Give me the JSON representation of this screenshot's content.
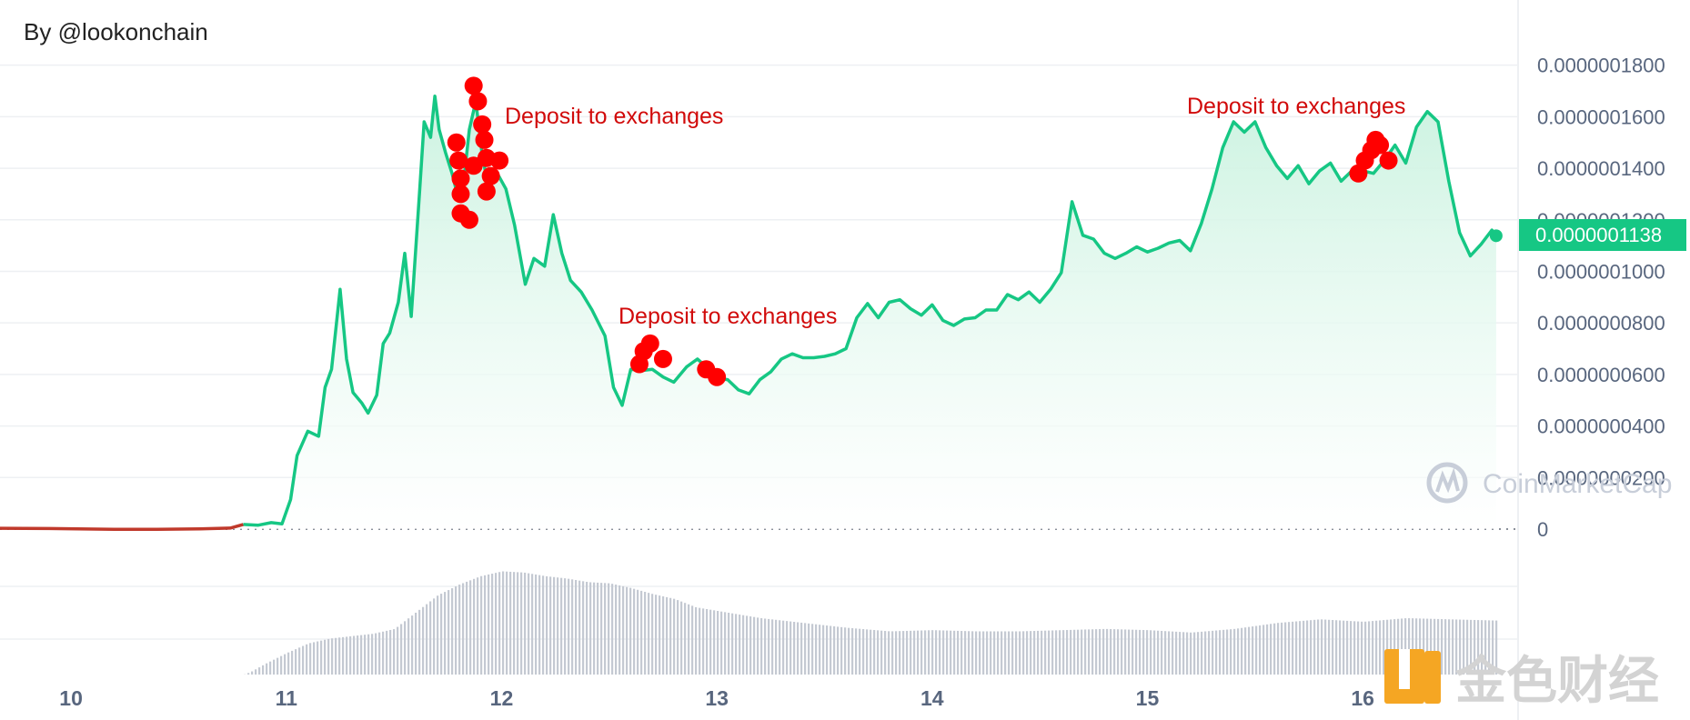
{
  "header": {
    "credit": "By @lookonchain"
  },
  "colors": {
    "line": "#16c784",
    "line_pre_launch": "#c0392b",
    "area_top": "#c9f2df",
    "marker": "#ff0000",
    "annotation": "#d10a0a",
    "price_badge": "#16c784",
    "volume": "#c4c9d2",
    "axis_text": "#58667e"
  },
  "price_badge": {
    "label": "0.0000001138"
  },
  "watermarks": {
    "coinmarketcap": "CoinMarketCap",
    "jinse": "金色财经"
  },
  "chart_data": {
    "type": "line",
    "title": "",
    "xlabel": "",
    "ylabel": "",
    "x_tick_labels": [
      "10",
      "11",
      "12",
      "13",
      "14",
      "15",
      "16"
    ],
    "y_tick_labels": [
      "0",
      "0.0000000200",
      "0.0000000400",
      "0.0000000600",
      "0.0000000800",
      "0.0000001000",
      "0.0000001200",
      "0.0000001400",
      "0.0000001600",
      "0.0000001800"
    ],
    "ylim": [
      0,
      1.82e-07
    ],
    "xlim": [
      9.67,
      16.65
    ],
    "grid": true,
    "series": [
      {
        "x": [
          9.67,
          9.9,
          10.2,
          10.4,
          10.6,
          10.74,
          10.8,
          10.87,
          10.93,
          10.98,
          11.02,
          11.05,
          11.1,
          11.15,
          11.18,
          11.21,
          11.25,
          11.28,
          11.31,
          11.35,
          11.38,
          11.42,
          11.45,
          11.48,
          11.52,
          11.55,
          11.58,
          11.62,
          11.64,
          11.67,
          11.69,
          11.71,
          11.74,
          11.77,
          11.8,
          11.82,
          11.85,
          11.88,
          11.91,
          11.94,
          11.98,
          12.02,
          12.06,
          12.11,
          12.15,
          12.2,
          12.24,
          12.28,
          12.32,
          12.37,
          12.42,
          12.48,
          12.52,
          12.56,
          12.6,
          12.65,
          12.7,
          12.75,
          12.8,
          12.86,
          12.91,
          12.95,
          13.0,
          13.05,
          13.1,
          13.15,
          13.2,
          13.25,
          13.3,
          13.35,
          13.4,
          13.45,
          13.5,
          13.55,
          13.6,
          13.65,
          13.7,
          13.75,
          13.8,
          13.85,
          13.9,
          13.95,
          14.0,
          14.05,
          14.1,
          14.15,
          14.2,
          14.25,
          14.3,
          14.35,
          14.4,
          14.45,
          14.5,
          14.55,
          14.6,
          14.65,
          14.7,
          14.75,
          14.8,
          14.85,
          14.9,
          14.95,
          15.0,
          15.05,
          15.1,
          15.15,
          15.2,
          15.25,
          15.3,
          15.35,
          15.4,
          15.45,
          15.5,
          15.55,
          15.6,
          15.65,
          15.7,
          15.75,
          15.8,
          15.85,
          15.9,
          15.95,
          16.0,
          16.05,
          16.1,
          16.15,
          16.2,
          16.25,
          16.3,
          16.35,
          16.4,
          16.45,
          16.5,
          16.55,
          16.6,
          16.62
        ],
        "y": [
          3e-10,
          2e-10,
          -1e-10,
          -1e-10,
          1e-10,
          4e-10,
          1.8e-09,
          1.5e-09,
          2.5e-09,
          2e-09,
          1.15e-08,
          2.85e-08,
          3.8e-08,
          3.6e-08,
          5.5e-08,
          6.2e-08,
          9.3e-08,
          6.6e-08,
          5.3e-08,
          4.9e-08,
          4.5e-08,
          5.2e-08,
          7.2e-08,
          7.6e-08,
          8.8e-08,
          1.07e-07,
          8.25e-08,
          1.32e-07,
          1.58e-07,
          1.52e-07,
          1.68e-07,
          1.55e-07,
          1.46e-07,
          1.38e-07,
          1.28e-07,
          1.32e-07,
          1.55e-07,
          1.66e-07,
          1.45e-07,
          1.32e-07,
          1.38e-07,
          1.32e-07,
          1.18e-07,
          9.5e-08,
          1.05e-07,
          1.02e-07,
          1.22e-07,
          1.07e-07,
          9.65e-08,
          9.2e-08,
          8.5e-08,
          7.5e-08,
          5.5e-08,
          4.8e-08,
          6.2e-08,
          6.15e-08,
          6.2e-08,
          5.9e-08,
          5.7e-08,
          6.3e-08,
          6.6e-08,
          6.3e-08,
          5.85e-08,
          5.8e-08,
          5.4e-08,
          5.25e-08,
          5.8e-08,
          6.1e-08,
          6.6e-08,
          6.8e-08,
          6.65e-08,
          6.65e-08,
          6.7e-08,
          6.8e-08,
          7e-08,
          8.2e-08,
          8.75e-08,
          8.2e-08,
          8.8e-08,
          8.9e-08,
          8.55e-08,
          8.3e-08,
          8.7e-08,
          8.1e-08,
          7.9e-08,
          8.15e-08,
          8.2e-08,
          8.5e-08,
          8.5e-08,
          9.1e-08,
          8.9e-08,
          9.2e-08,
          8.8e-08,
          9.3e-08,
          9.95e-08,
          1.27e-07,
          1.14e-07,
          1.125e-07,
          1.07e-07,
          1.05e-07,
          1.07e-07,
          1.095e-07,
          1.075e-07,
          1.09e-07,
          1.11e-07,
          1.12e-07,
          1.08e-07,
          1.185e-07,
          1.32e-07,
          1.48e-07,
          1.58e-07,
          1.54e-07,
          1.58e-07,
          1.48e-07,
          1.41e-07,
          1.36e-07,
          1.41e-07,
          1.34e-07,
          1.39e-07,
          1.42e-07,
          1.35e-07,
          1.39e-07,
          1.39e-07,
          1.38e-07,
          1.43e-07,
          1.49e-07,
          1.42e-07,
          1.56e-07,
          1.62e-07,
          1.58e-07,
          1.35e-07,
          1.15e-07,
          1.06e-07,
          1.105e-07,
          1.16e-07,
          1.138e-07
        ]
      }
    ],
    "pre_launch_end_x": 10.8,
    "events": [
      {
        "label": "Deposit to exchanges",
        "markers": [
          [
            11.79,
            1.5e-07
          ],
          [
            11.8,
            1.43e-07
          ],
          [
            11.81,
            1.36e-07
          ],
          [
            11.81,
            1.3e-07
          ],
          [
            11.81,
            1.225e-07
          ],
          [
            11.85,
            1.2e-07
          ],
          [
            11.87,
            1.41e-07
          ],
          [
            11.87,
            1.72e-07
          ],
          [
            11.89,
            1.66e-07
          ],
          [
            11.91,
            1.57e-07
          ],
          [
            11.92,
            1.51e-07
          ],
          [
            11.93,
            1.44e-07
          ],
          [
            11.93,
            1.31e-07
          ],
          [
            11.95,
            1.37e-07
          ],
          [
            11.99,
            1.43e-07
          ]
        ]
      },
      {
        "label": "Deposit to exchanges",
        "markers": [
          [
            12.64,
            6.4e-08
          ],
          [
            12.66,
            6.9e-08
          ],
          [
            12.69,
            7.2e-08
          ],
          [
            12.75,
            6.6e-08
          ],
          [
            12.95,
            6.2e-08
          ],
          [
            13.0,
            5.9e-08
          ]
        ]
      },
      {
        "label": "Deposit to exchanges",
        "markers": [
          [
            15.98,
            1.38e-07
          ],
          [
            16.01,
            1.43e-07
          ],
          [
            16.04,
            1.47e-07
          ],
          [
            16.06,
            1.51e-07
          ],
          [
            16.08,
            1.49e-07
          ],
          [
            16.12,
            1.43e-07
          ]
        ]
      }
    ],
    "volume": {
      "x": [
        9.67,
        10.8,
        10.83,
        10.9,
        11.0,
        11.1,
        11.2,
        11.3,
        11.4,
        11.5,
        11.6,
        11.7,
        11.8,
        11.9,
        12.0,
        12.1,
        12.2,
        12.3,
        12.4,
        12.5,
        12.6,
        12.7,
        12.8,
        12.9,
        13.0,
        13.2,
        13.4,
        13.6,
        13.8,
        14.0,
        14.2,
        14.4,
        14.6,
        14.8,
        15.0,
        15.2,
        15.4,
        15.6,
        15.8,
        16.0,
        16.2,
        16.4,
        16.62
      ],
      "values": [
        0,
        0,
        0.02,
        0.09,
        0.18,
        0.26,
        0.3,
        0.32,
        0.34,
        0.38,
        0.52,
        0.66,
        0.75,
        0.82,
        0.86,
        0.85,
        0.82,
        0.8,
        0.77,
        0.76,
        0.72,
        0.67,
        0.63,
        0.56,
        0.53,
        0.47,
        0.43,
        0.39,
        0.36,
        0.37,
        0.36,
        0.36,
        0.37,
        0.38,
        0.37,
        0.35,
        0.38,
        0.43,
        0.46,
        0.44,
        0.47,
        0.46,
        0.45
      ]
    }
  }
}
